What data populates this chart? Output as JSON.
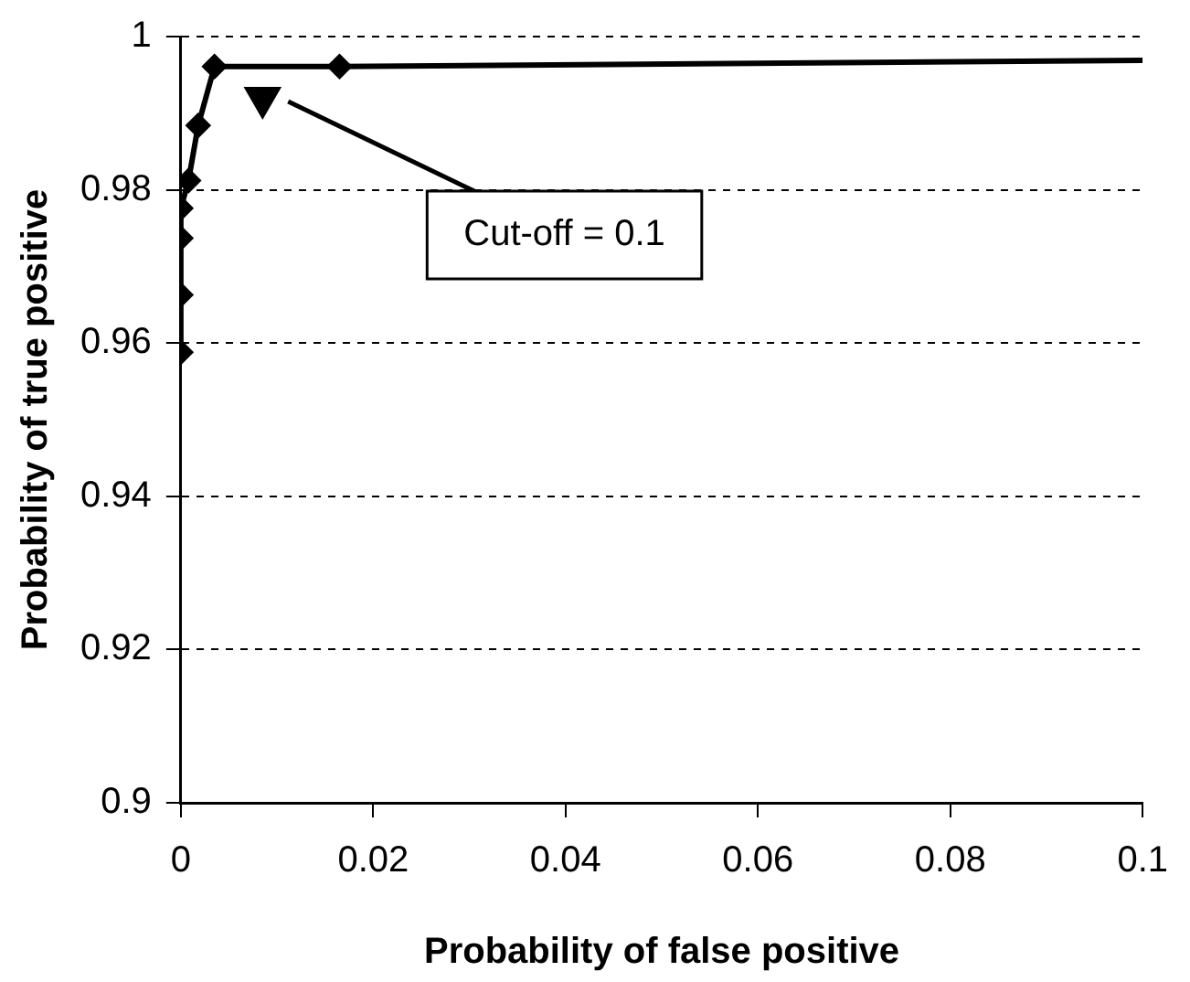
{
  "chart_data": {
    "type": "line",
    "xlabel": "Probability of false positive",
    "ylabel": "Probability of true positive",
    "xlim": [
      0,
      0.1
    ],
    "xticks": [
      0,
      0.02,
      0.04,
      0.06,
      0.08,
      0.1
    ],
    "ylim": [
      0.9,
      1
    ],
    "yticks": [
      0.9,
      0.92,
      0.94,
      0.96,
      0.98,
      1
    ],
    "grid": "y",
    "legend": false,
    "line_style": "solid",
    "series": [
      {
        "color": "#000000",
        "marker": "diamond",
        "x": [
          0,
          0,
          0,
          0,
          0.0008,
          0.0018,
          0.0035,
          0.0165
        ],
        "values": [
          0.9588,
          0.9663,
          0.9737,
          0.9776,
          0.9812,
          0.9884,
          0.9961,
          0.9961
        ]
      },
      {
        "color": "#000000",
        "marker": "none",
        "x": [
          0.0165,
          0.1
        ],
        "values": [
          0.9961,
          0.9969
        ]
      },
      {
        "type": "scatter",
        "color": "#000000",
        "marker": "triangle",
        "x": [
          0.0085
        ],
        "values": [
          0.992
        ]
      }
    ],
    "annotations": [
      "Cut-off = 0.1"
    ]
  }
}
